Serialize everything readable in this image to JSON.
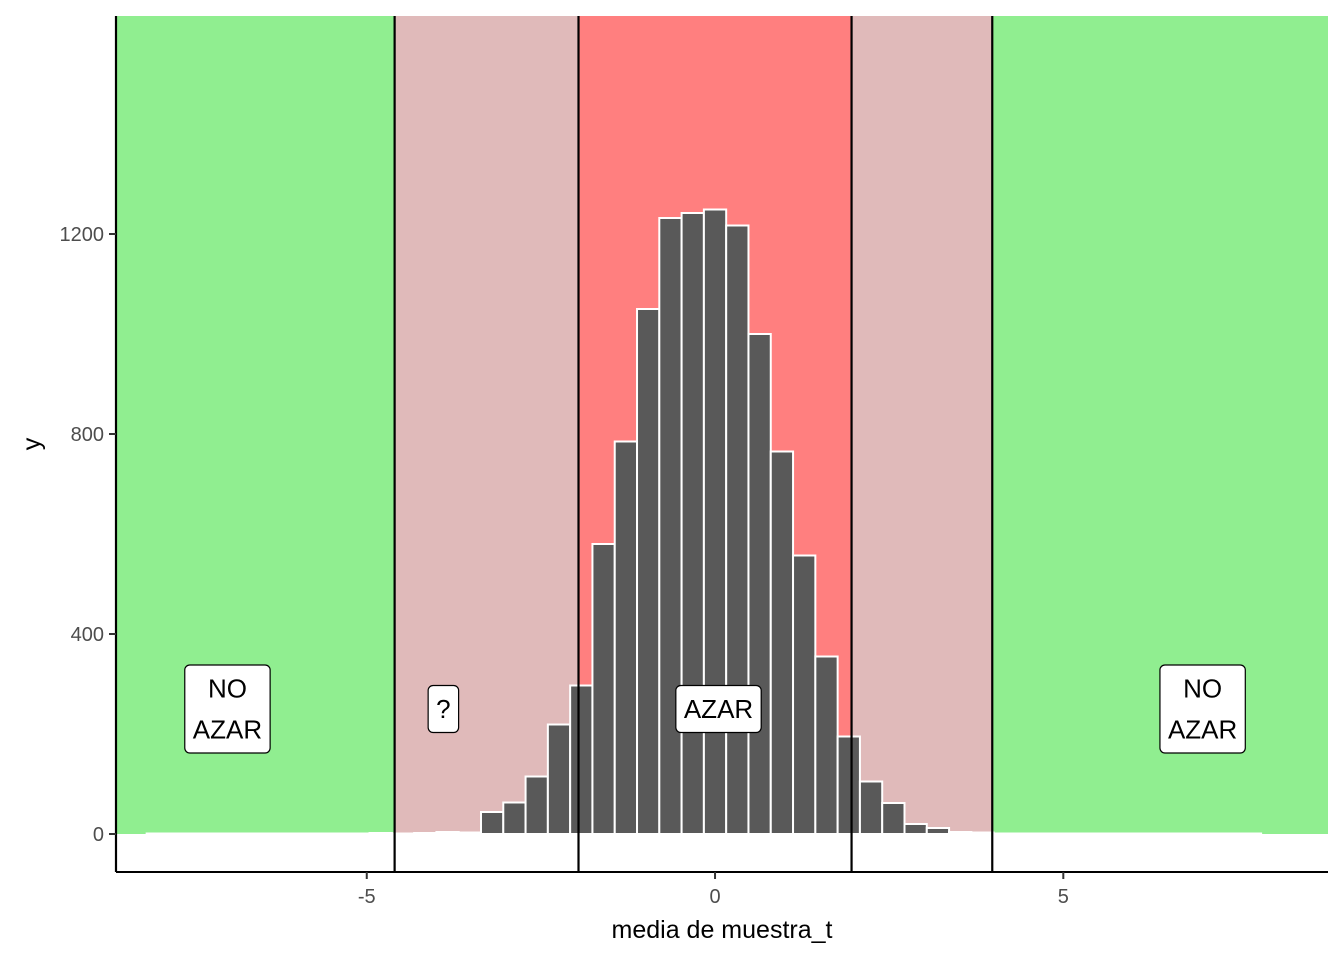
{
  "chart_data": {
    "type": "bar",
    "xlabel": "media de muestra_t",
    "ylabel": "y",
    "xlim": [
      -8.6,
      8.8
    ],
    "ylim": [
      -76,
      1636
    ],
    "x_ticks": [
      {
        "value": -5,
        "label": "-5"
      },
      {
        "value": 0,
        "label": "0"
      },
      {
        "value": 5,
        "label": "5"
      }
    ],
    "y_ticks": [
      {
        "value": 0,
        "label": "0"
      },
      {
        "value": 400,
        "label": "400"
      },
      {
        "value": 800,
        "label": "800"
      },
      {
        "value": 1200,
        "label": "1200"
      }
    ],
    "bin_width": 0.32,
    "histogram": {
      "x": [
        -8.0,
        -7.68,
        -7.36,
        -7.04,
        -6.72,
        -6.4,
        -6.08,
        -5.76,
        -5.44,
        -5.12,
        -4.8,
        -4.48,
        -4.16,
        -3.84,
        -3.52,
        -3.2,
        -2.88,
        -2.56,
        -2.24,
        -1.92,
        -1.6,
        -1.28,
        -0.96,
        -0.64,
        -0.32,
        0.0,
        0.32,
        0.64,
        0.96,
        1.28,
        1.6,
        1.92,
        2.24,
        2.56,
        2.88,
        3.2,
        3.52,
        3.84,
        4.16,
        4.48,
        4.8,
        5.12,
        5.44,
        5.76,
        6.08,
        6.4,
        6.72,
        7.04,
        7.36,
        7.68
      ],
      "counts": [
        1,
        1,
        1,
        1,
        1,
        1,
        1,
        1,
        1,
        1,
        2,
        1,
        2,
        4,
        3,
        44,
        63,
        115,
        219,
        297,
        580,
        785,
        1050,
        1232,
        1242,
        1249,
        1217,
        1000,
        765,
        557,
        355,
        195,
        105,
        62,
        20,
        12,
        4,
        3,
        1,
        1,
        1,
        1,
        1,
        1,
        1,
        1,
        1,
        1,
        1,
        1
      ]
    },
    "bar_color": "#595959",
    "bar_outline": "#ffffff",
    "zones": [
      {
        "xmin": -8.6,
        "xmax": -4.6,
        "color": "#90ee90"
      },
      {
        "xmin": -4.6,
        "xmax": -1.96,
        "color": "#e0baba"
      },
      {
        "xmin": -1.96,
        "xmax": 1.96,
        "color": "#ff7f7f"
      },
      {
        "xmin": 1.96,
        "xmax": 3.98,
        "color": "#e0baba"
      },
      {
        "xmin": 3.98,
        "xmax": 8.8,
        "color": "#90ee90"
      }
    ],
    "zone_ymin": 0,
    "vlines": [
      -8.6,
      -4.6,
      -1.96,
      1.96,
      3.98
    ],
    "annotations": [
      {
        "x": -7.0,
        "y": 250,
        "lines": [
          "NO",
          "AZAR"
        ]
      },
      {
        "x": -3.9,
        "y": 250,
        "lines": [
          "?"
        ]
      },
      {
        "x": 0.05,
        "y": 250,
        "lines": [
          "AZAR"
        ]
      },
      {
        "x": 7.0,
        "y": 250,
        "lines": [
          "NO",
          "AZAR"
        ]
      }
    ],
    "grid": false,
    "legend": "none"
  }
}
